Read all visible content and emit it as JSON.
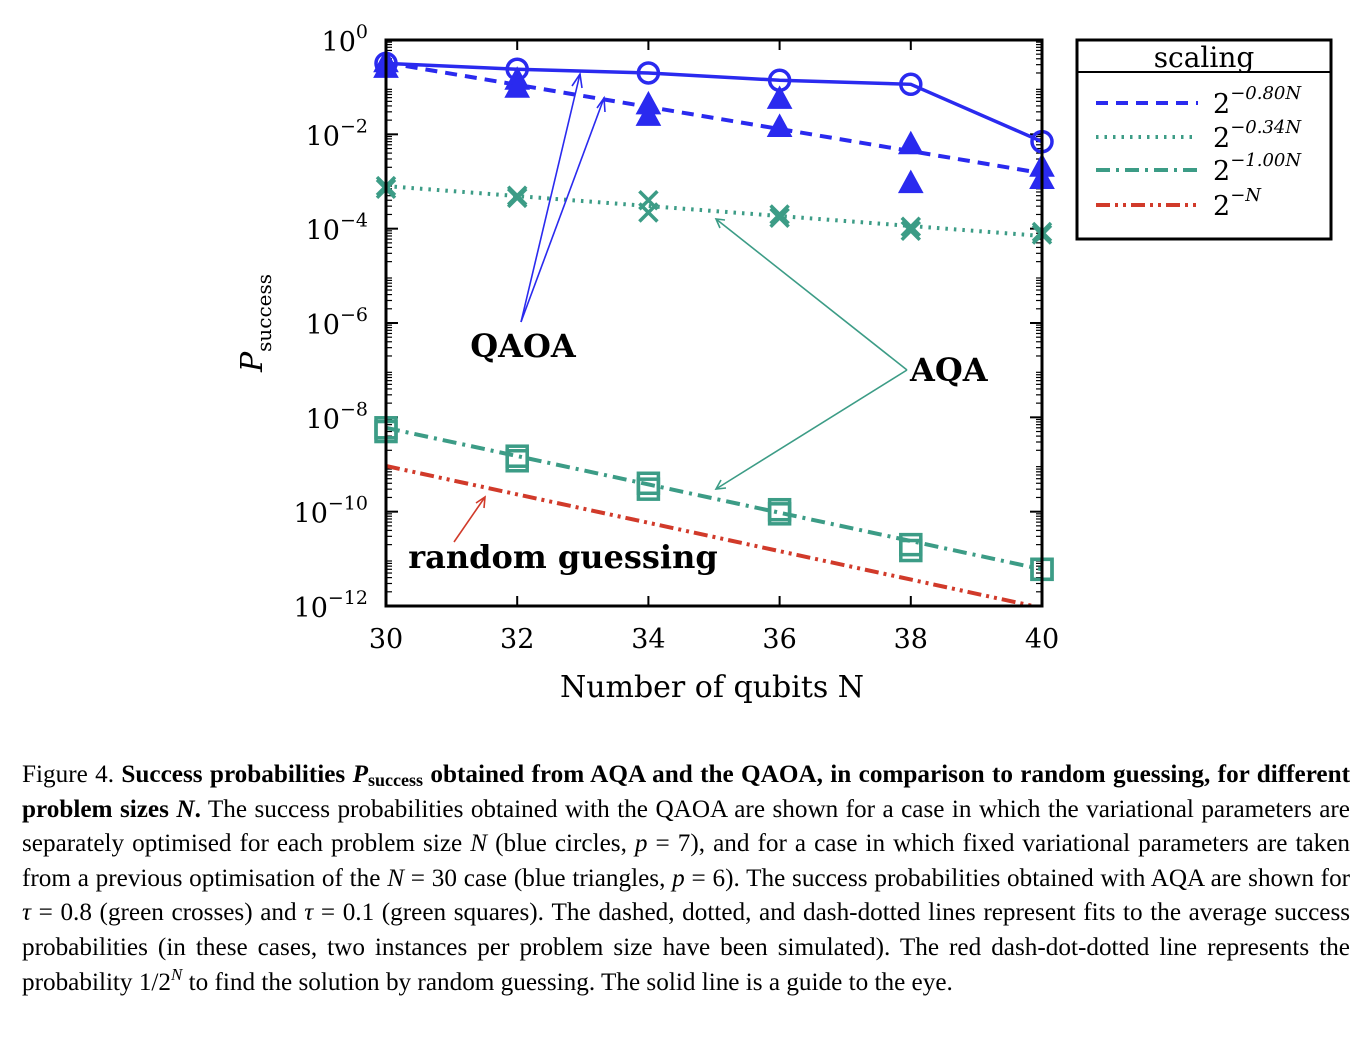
{
  "chart_data": {
    "type": "scatter",
    "ylabel_main": "P",
    "ylabel_sub": "success",
    "xlabel": "Number of qubits N",
    "xlim": [
      30,
      40
    ],
    "x_ticks": [
      "30",
      "32",
      "34",
      "36",
      "38",
      "40"
    ],
    "y_scale": "log10",
    "ylim": [
      1e-12,
      1
    ],
    "y_tick_base": "10",
    "y_tick_exponents": [
      "0",
      "−2",
      "−4",
      "−6",
      "−8",
      "−10",
      "−12"
    ],
    "colors": {
      "blue": "#2a2aef",
      "green": "#3c9c86",
      "red": "#d13a2a"
    },
    "series": [
      {
        "marker": "circle",
        "color": "blue",
        "connect": "solid",
        "points": [
          [
            30,
            0.32
          ],
          [
            32,
            0.24
          ],
          [
            34,
            0.2
          ],
          [
            36,
            0.14
          ],
          [
            38,
            0.115
          ],
          [
            40,
            0.007
          ]
        ]
      },
      {
        "marker": "triangle",
        "color": "blue",
        "points": [
          [
            30,
            0.33
          ],
          [
            30,
            0.25
          ],
          [
            32,
            0.14
          ],
          [
            32,
            0.095
          ],
          [
            34,
            0.042
          ],
          [
            34,
            0.024
          ],
          [
            36,
            0.055
          ],
          [
            36,
            0.014
          ],
          [
            38,
            0.006
          ],
          [
            38,
            0.0009
          ],
          [
            40,
            0.002
          ],
          [
            40,
            0.0011
          ]
        ]
      },
      {
        "marker": "cross",
        "color": "green",
        "points": [
          [
            30,
            0.0008
          ],
          [
            30,
            0.0007
          ],
          [
            32,
            0.0005
          ],
          [
            32,
            0.00045
          ],
          [
            34,
            0.0004
          ],
          [
            34,
            0.00022
          ],
          [
            36,
            0.0002
          ],
          [
            36,
            0.00017
          ],
          [
            38,
            0.00011
          ],
          [
            38,
            9e-05
          ],
          [
            40,
            8.5e-05
          ],
          [
            40,
            7.5e-05
          ]
        ]
      },
      {
        "marker": "square",
        "color": "green",
        "points": [
          [
            30,
            6e-09
          ],
          [
            30,
            5e-09
          ],
          [
            32,
            1.5e-09
          ],
          [
            32,
            1.2e-09
          ],
          [
            34,
            4e-10
          ],
          [
            34,
            3e-10
          ],
          [
            36,
            1.1e-10
          ],
          [
            36,
            9e-11
          ],
          [
            38,
            2e-11
          ],
          [
            38,
            1.5e-11
          ],
          [
            40,
            6e-12
          ],
          [
            40,
            6e-12
          ]
        ]
      }
    ],
    "fits": [
      {
        "name": "2^{−0.80N}",
        "color": "blue",
        "dash": "dashed",
        "points": [
          [
            30,
            0.33
          ],
          [
            40,
            0.0015
          ]
        ]
      },
      {
        "name": "2^{−0.34N}",
        "color": "green",
        "dash": "dotted",
        "points": [
          [
            30,
            0.0008
          ],
          [
            40,
            7e-05
          ]
        ]
      },
      {
        "name": "2^{−1.00N}",
        "color": "green",
        "dash": "dashdot",
        "points": [
          [
            30,
            6e-09
          ],
          [
            40,
            6e-12
          ]
        ]
      },
      {
        "name": "2^{−N}",
        "color": "red",
        "dash": "dashdotdot",
        "points": [
          [
            30,
            9.3e-10
          ],
          [
            40,
            9.1e-13
          ]
        ]
      }
    ],
    "annotations": {
      "qaoa": "QAOA",
      "aqa": "AQA",
      "random": "random guessing"
    },
    "legend": {
      "title": "scaling",
      "base": "2",
      "entries": [
        {
          "exponent": "−0.80N",
          "color": "blue",
          "dash": "dashed"
        },
        {
          "exponent": "−0.34N",
          "color": "green",
          "dash": "dotted"
        },
        {
          "exponent": "−1.00N",
          "color": "green",
          "dash": "dashdot"
        },
        {
          "exponent": "−N",
          "color": "red",
          "dash": "dashdotdot"
        }
      ],
      "placement": "outside-top-right"
    },
    "grid": false
  },
  "caption": {
    "label": "Figure 4.",
    "bold_a": "Success probabilities",
    "bold_p": "P",
    "bold_sub": "success",
    "bold_b": "obtained from AQA and the QAOA, in comparison to random guessing, for different problem sizes",
    "bold_n": "N",
    "bold_end": ".",
    "t1": "The success probabilities obtained with the QAOA are shown for a case in which the variational parameters are separately optimised for each problem size",
    "n1": "N",
    "t2": "(blue circles,",
    "p1": "p",
    "t3": "= 7), and for a case in which fixed variational parameters are taken from a previous optimisation of the",
    "n2": "N",
    "t4": "= 30 case (blue triangles,",
    "p2": "p",
    "t5": "= 6). The success probabilities obtained with AQA are shown for",
    "tau1": "τ",
    "t6": "= 0.8 (green crosses) and",
    "tau2": "τ",
    "t7": "= 0.1 (green squares). The dashed, dotted, and dash-dotted lines represent fits to the average success probabilities (in these cases, two instances per problem size have been simulated). The red dash-dot-dotted line represents the probability 1/2",
    "sup_n": "N",
    "t8": "to find the solution by random guessing. The solid line is a guide to the eye."
  }
}
